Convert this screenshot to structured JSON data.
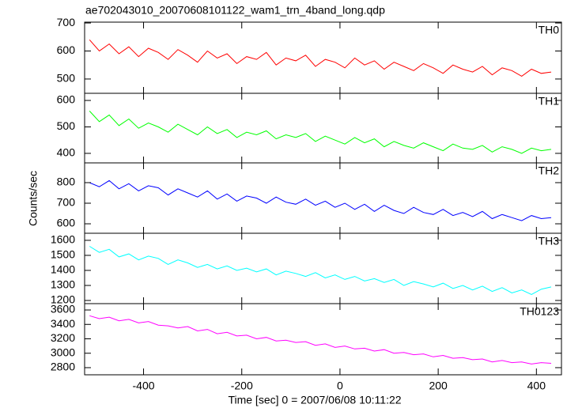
{
  "chart_data": {
    "type": "line",
    "title": "ae702043010_20070608101122_wam1_trn_4band_long.qdp",
    "x_label": "Time [sec] 0 = 2007/06/08 10:11:22",
    "y_label": "Counts/sec",
    "xlim": [
      -520,
      451
    ],
    "xticks": [
      -400,
      -200,
      0,
      200,
      400
    ],
    "x": [
      -510,
      -490,
      -470,
      -450,
      -430,
      -410,
      -390,
      -370,
      -350,
      -330,
      -310,
      -290,
      -270,
      -250,
      -230,
      -210,
      -190,
      -170,
      -150,
      -130,
      -110,
      -90,
      -70,
      -50,
      -30,
      -10,
      10,
      30,
      50,
      70,
      90,
      110,
      130,
      150,
      170,
      190,
      210,
      230,
      250,
      270,
      290,
      310,
      330,
      350,
      370,
      390,
      410,
      430
    ],
    "series": [
      {
        "name": "TH0",
        "color": "#ff0000",
        "ylim": [
          449,
          703
        ],
        "yticks": [
          500,
          600,
          700
        ],
        "values": [
          640,
          600,
          625,
          590,
          615,
          580,
          610,
          595,
          570,
          605,
          585,
          560,
          600,
          575,
          590,
          555,
          580,
          570,
          595,
          550,
          575,
          565,
          585,
          545,
          570,
          560,
          540,
          575,
          550,
          565,
          535,
          560,
          545,
          530,
          555,
          540,
          520,
          550,
          535,
          525,
          545,
          515,
          540,
          530,
          510,
          535,
          520,
          525
        ]
      },
      {
        "name": "TH1",
        "color": "#00ff00",
        "ylim": [
          364,
          627
        ],
        "yticks": [
          400,
          500,
          600
        ],
        "values": [
          560,
          520,
          545,
          505,
          530,
          495,
          515,
          500,
          480,
          510,
          490,
          470,
          500,
          475,
          490,
          460,
          480,
          470,
          485,
          455,
          470,
          460,
          475,
          445,
          465,
          450,
          435,
          460,
          440,
          455,
          425,
          445,
          430,
          420,
          440,
          425,
          410,
          435,
          420,
          415,
          430,
          405,
          425,
          415,
          400,
          420,
          410,
          415
        ]
      },
      {
        "name": "TH2",
        "color": "#0000ff",
        "ylim": [
          554,
          896
        ],
        "yticks": [
          600,
          700,
          800
        ],
        "values": [
          800,
          780,
          810,
          770,
          795,
          760,
          785,
          775,
          740,
          770,
          750,
          730,
          760,
          720,
          745,
          710,
          735,
          725,
          700,
          730,
          705,
          695,
          720,
          690,
          710,
          680,
          700,
          670,
          695,
          660,
          690,
          665,
          650,
          680,
          655,
          645,
          670,
          640,
          655,
          635,
          660,
          625,
          645,
          630,
          615,
          640,
          625,
          630
        ]
      },
      {
        "name": "TH3",
        "color": "#00ffff",
        "ylim": [
          1179,
          1647
        ],
        "yticks": [
          1200,
          1300,
          1400,
          1500,
          1600
        ],
        "values": [
          1560,
          1520,
          1540,
          1490,
          1510,
          1470,
          1495,
          1480,
          1440,
          1470,
          1450,
          1420,
          1440,
          1410,
          1430,
          1400,
          1415,
          1390,
          1410,
          1370,
          1395,
          1380,
          1360,
          1385,
          1350,
          1370,
          1340,
          1360,
          1330,
          1345,
          1320,
          1340,
          1300,
          1325,
          1310,
          1290,
          1315,
          1280,
          1300,
          1270,
          1295,
          1260,
          1285,
          1250,
          1270,
          1240,
          1275,
          1290
        ]
      },
      {
        "name": "TH0123",
        "color": "#ff00ff",
        "ylim": [
          2701,
          3688
        ],
        "yticks": [
          2800,
          3000,
          3200,
          3400,
          3600
        ],
        "values": [
          3520,
          3480,
          3500,
          3450,
          3470,
          3420,
          3440,
          3390,
          3380,
          3350,
          3370,
          3310,
          3330,
          3270,
          3290,
          3240,
          3250,
          3200,
          3220,
          3170,
          3180,
          3150,
          3160,
          3110,
          3130,
          3080,
          3100,
          3060,
          3070,
          3030,
          3050,
          3000,
          3010,
          2980,
          2990,
          2950,
          2970,
          2930,
          2940,
          2910,
          2920,
          2880,
          2900,
          2870,
          2880,
          2850,
          2870,
          2860
        ]
      }
    ]
  }
}
